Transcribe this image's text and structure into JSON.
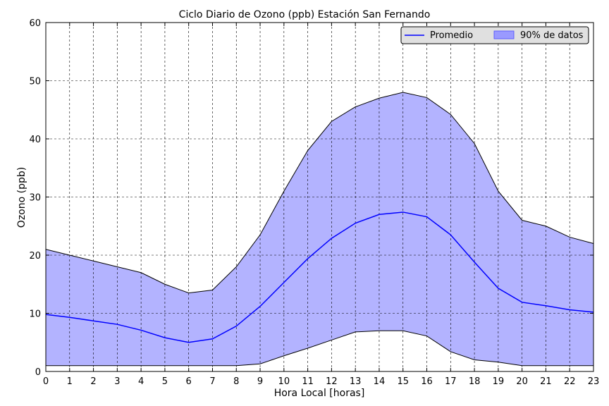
{
  "chart_data": {
    "type": "line",
    "title": "Ciclo Diario de Ozono (ppb) Estación San Fernando",
    "xlabel": "Hora Local [horas]",
    "ylabel": "Ozono (ppb)",
    "xlim": [
      0,
      23
    ],
    "ylim": [
      0,
      60
    ],
    "x": [
      0,
      1,
      2,
      3,
      4,
      5,
      6,
      7,
      8,
      9,
      10,
      11,
      12,
      13,
      14,
      15,
      16,
      17,
      18,
      19,
      20,
      21,
      22,
      23
    ],
    "x_ticks": [
      "0",
      "1",
      "2",
      "3",
      "4",
      "5",
      "6",
      "7",
      "8",
      "9",
      "10",
      "11",
      "12",
      "13",
      "14",
      "15",
      "16",
      "17",
      "18",
      "19",
      "20",
      "21",
      "22",
      "23"
    ],
    "y_ticks": [
      "0",
      "10",
      "20",
      "30",
      "40",
      "50",
      "60"
    ],
    "series": [
      {
        "name": "Promedio",
        "values": [
          9.8,
          9.3,
          8.7,
          8.1,
          7.1,
          5.8,
          5.0,
          5.6,
          7.8,
          11.2,
          15.3,
          19.4,
          22.9,
          25.5,
          27.0,
          27.4,
          26.6,
          23.5,
          18.8,
          14.3,
          11.9,
          11.3,
          10.6,
          10.2
        ]
      }
    ],
    "band": {
      "name": "90% de datos",
      "lower": [
        1.0,
        1.0,
        1.0,
        1.0,
        1.0,
        1.0,
        1.0,
        1.0,
        1.0,
        1.3,
        2.7,
        4.0,
        5.4,
        6.8,
        7.0,
        7.0,
        6.1,
        3.4,
        2.0,
        1.6,
        1.0,
        1.0,
        1.0,
        1.0
      ],
      "upper": [
        21.0,
        20.0,
        19.0,
        18.0,
        17.0,
        15.0,
        13.5,
        14.0,
        18.0,
        23.5,
        31.0,
        38.0,
        43.0,
        45.5,
        47.0,
        48.0,
        47.1,
        44.2,
        39.2,
        31.0,
        26.0,
        25.0,
        23.1,
        22.0
      ]
    },
    "grid": true,
    "legend": "top-right",
    "colors": {
      "mean_line": "#0000ff",
      "band_fill": "#b3b3ff",
      "band_edge": "#000000",
      "grid": "#000000"
    }
  }
}
